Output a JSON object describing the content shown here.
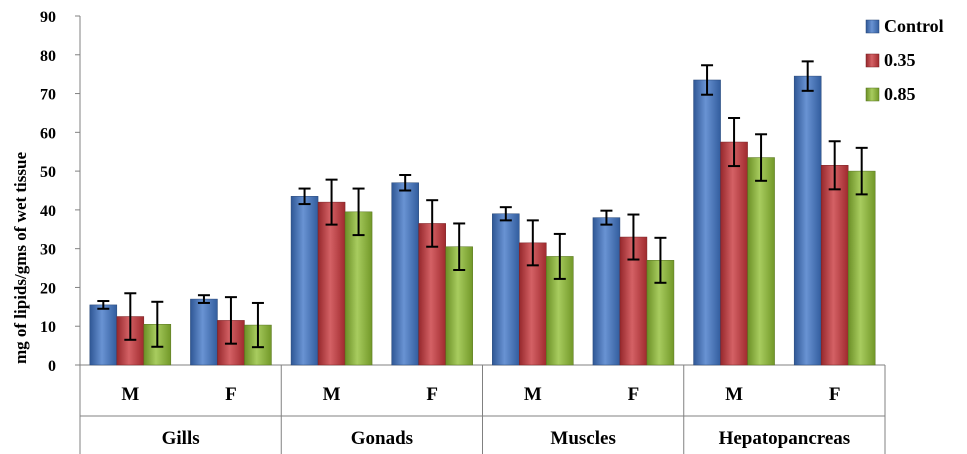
{
  "chart_data": {
    "type": "bar",
    "ylabel": "mg of lipids/gms of wet tissue",
    "ylim": [
      0,
      90
    ],
    "yticks": [
      "0",
      "10",
      "20",
      "30",
      "40",
      "50",
      "60",
      "70",
      "80",
      "90"
    ],
    "groups": [
      {
        "label": "Gills",
        "categories": [
          "M",
          "F"
        ]
      },
      {
        "label": "Gonads",
        "categories": [
          "M",
          "F"
        ]
      },
      {
        "label": "Muscles",
        "categories": [
          "M",
          "F"
        ]
      },
      {
        "label": "Hepatopancreas",
        "categories": [
          "M",
          "F"
        ]
      }
    ],
    "categories": [
      "Gills M",
      "Gills F",
      "Gonads M",
      "Gonads F",
      "Muscles M",
      "Muscles F",
      "Hepatopancreas M",
      "Hepatopancreas F"
    ],
    "series": [
      {
        "name": "Control",
        "color": "#3f74c6",
        "values": [
          15.5,
          17,
          43.5,
          47,
          39,
          38,
          73.5,
          74.5
        ],
        "errors": [
          1,
          1,
          2,
          2,
          1.7,
          1.8,
          3.8,
          3.8
        ]
      },
      {
        "name": "0.35",
        "color": "#c8353a",
        "values": [
          12.5,
          11.5,
          42,
          36.5,
          31.5,
          33,
          57.5,
          51.5
        ],
        "errors": [
          6,
          6,
          5.8,
          6,
          5.8,
          5.8,
          6.2,
          6.2
        ]
      },
      {
        "name": "0.85",
        "color": "#8fbe32",
        "values": [
          10.5,
          10.3,
          39.5,
          30.5,
          28,
          27,
          53.5,
          50
        ],
        "errors": [
          5.8,
          5.7,
          6,
          6,
          5.8,
          5.8,
          6,
          6
        ]
      }
    ],
    "legend": "top-right",
    "grid": false
  }
}
